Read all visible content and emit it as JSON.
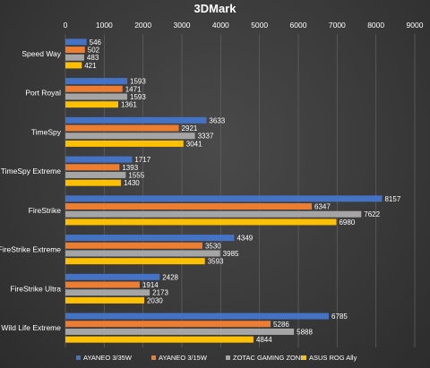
{
  "chart_data": {
    "type": "bar",
    "orientation": "horizontal",
    "title": "3DMark",
    "xlim": [
      0,
      9000
    ],
    "xticks": [
      "0",
      "1000",
      "2000",
      "3000",
      "4000",
      "5000",
      "6000",
      "7000",
      "8000",
      "9000"
    ],
    "xtick_values": [
      0,
      1000,
      2000,
      3000,
      4000,
      5000,
      6000,
      7000,
      8000,
      9000
    ],
    "grid": true,
    "legend_position": "bottom",
    "categories": [
      "Speed Way",
      "Port Royal",
      "TimeSpy",
      "TimeSpy Extreme",
      "FireStrike",
      "FireStrike Extreme",
      "FireStrike Ultra",
      "Wild Life Extreme"
    ],
    "series": [
      {
        "name": "AYANEO 3/35W",
        "color": "#4472c4",
        "values": [
          546,
          1593,
          3633,
          1717,
          8157,
          4349,
          2428,
          6785
        ]
      },
      {
        "name": "AYANEO 3/15W",
        "color": "#ed7d31",
        "values": [
          502,
          1471,
          2921,
          1393,
          6347,
          3530,
          1914,
          5286
        ]
      },
      {
        "name": "ZOTAC GAMING ZONE",
        "color": "#a5a5a5",
        "values": [
          483,
          1593,
          3337,
          1555,
          7622,
          3985,
          2173,
          5888
        ]
      },
      {
        "name": "ASUS ROG Ally",
        "color": "#ffc000",
        "values": [
          421,
          1361,
          3041,
          1430,
          6980,
          3593,
          2030,
          4844
        ]
      }
    ]
  }
}
